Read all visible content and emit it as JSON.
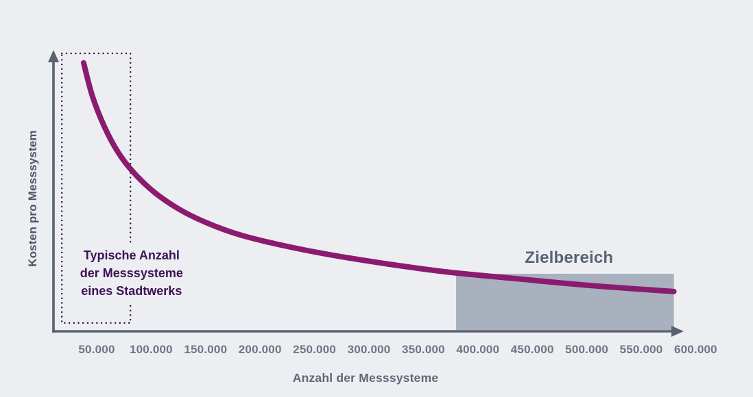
{
  "colors": {
    "background": "#ECEEF2",
    "axis": "#596271",
    "tick_label": "#6F7683",
    "curve": "#8A1B6E",
    "zone_fill": "#A9B0BE",
    "zone_label": "#5A6372",
    "annotation_text": "#3D1254",
    "annotation_border": "#2D1038"
  },
  "chart_data": {
    "type": "line",
    "title": "",
    "xlabel": "Anzahl der Messsysteme",
    "ylabel": "Kosten pro Messsystem",
    "x_ticks": [
      "50.000",
      "100.000",
      "150.000",
      "200.000",
      "250.000",
      "300.000",
      "350.000",
      "400.000",
      "450.000",
      "500.000",
      "550.000",
      "600.000"
    ],
    "x_range": [
      0,
      600000
    ],
    "y_axis": "relative (no tick labels) — Kosten pro Messsystem, fällt mit steigender Stückzahl",
    "grid": false,
    "legend": false,
    "series": [
      {
        "name": "Kosten pro Messsystem",
        "color": "#8A1B6E",
        "points_x_value_y_norm": [
          [
            38000,
            0.966
          ],
          [
            46000,
            0.847
          ],
          [
            57000,
            0.737
          ],
          [
            69500,
            0.645
          ],
          [
            84000,
            0.571
          ],
          [
            103000,
            0.5
          ],
          [
            125000,
            0.441
          ],
          [
            150000,
            0.392
          ],
          [
            181500,
            0.347
          ],
          [
            219500,
            0.31
          ],
          [
            263500,
            0.276
          ],
          [
            314000,
            0.244
          ],
          [
            370500,
            0.214
          ],
          [
            433500,
            0.19
          ],
          [
            502500,
            0.165
          ],
          [
            580000,
            0.143
          ]
        ]
      }
    ],
    "zones": [
      {
        "name": "zielbereich",
        "label": "Zielbereich",
        "x_start": 380000,
        "x_end": 580000,
        "y_top_norm": 0.207,
        "fill": "#A9B0BE"
      }
    ],
    "annotations": [
      {
        "name": "typische-anzahl-box",
        "style": "dotted-rect",
        "x_start": 18000,
        "x_end": 81000,
        "y_bottom_norm": 0.03,
        "y_top_norm": 1.0,
        "label_lines": [
          "Typische Anzahl",
          "der Messsysteme",
          "eines Stadtwerks"
        ],
        "label_x_value": 82000,
        "label_y_norm": 0.209
      }
    ]
  }
}
